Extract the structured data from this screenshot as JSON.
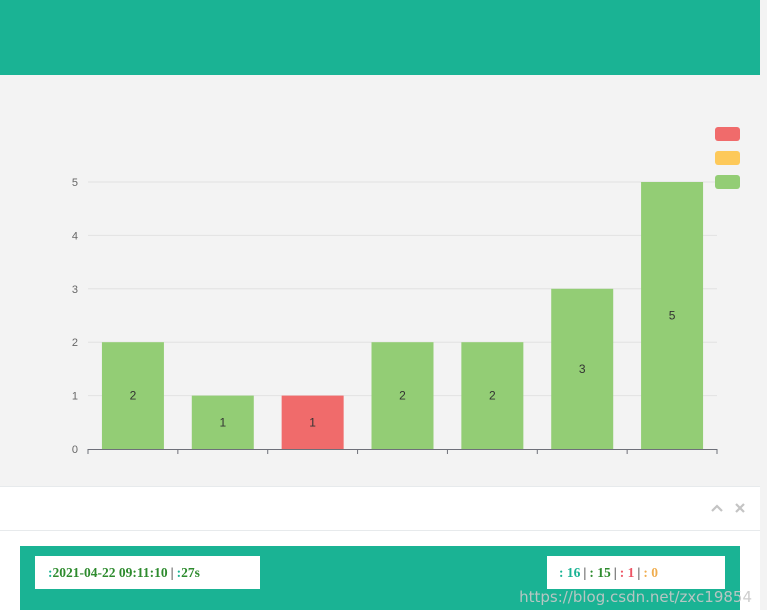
{
  "header": {
    "title": ""
  },
  "chart_data": {
    "type": "bar",
    "title": "",
    "categories": [
      "",
      "",
      "",
      "",
      "",
      "",
      ""
    ],
    "values": [
      2,
      1,
      1,
      2,
      2,
      3,
      5
    ],
    "status": [
      "pass",
      "pass",
      "fail",
      "pass",
      "pass",
      "pass",
      "pass"
    ],
    "legend": [
      {
        "key": "fail",
        "label": "",
        "color": "#f06b6b"
      },
      {
        "key": "skip",
        "label": "",
        "color": "#fdc95a"
      },
      {
        "key": "pass",
        "label": "",
        "color": "#93cd75"
      }
    ],
    "legend_position": "top-right",
    "yticks": [
      "0",
      "1",
      "2",
      "3",
      "4",
      "5"
    ],
    "ylim": [
      0,
      5
    ],
    "grid": true
  },
  "panel": {
    "title": "",
    "collapse_icon": "chevron-up-icon",
    "close_icon": "close-icon"
  },
  "summary": {
    "start_label": "",
    "start_value": "2021-04-22 09:11:10",
    "duration_label": "",
    "duration_value": "27s",
    "sep": "|",
    "total_label": "",
    "total_value": "16",
    "pass_label": "",
    "pass_value": "15",
    "fail_label": "",
    "fail_value": "1",
    "skip_label": "",
    "skip_value": "0"
  },
  "watermark": {
    "line1": "",
    "line2": "https://blog.csdn.net/zxc19854"
  },
  "colors": {
    "accent": "#1ab394",
    "pass": "#93cd75",
    "fail": "#f06b6b",
    "skip": "#fdc95a"
  }
}
